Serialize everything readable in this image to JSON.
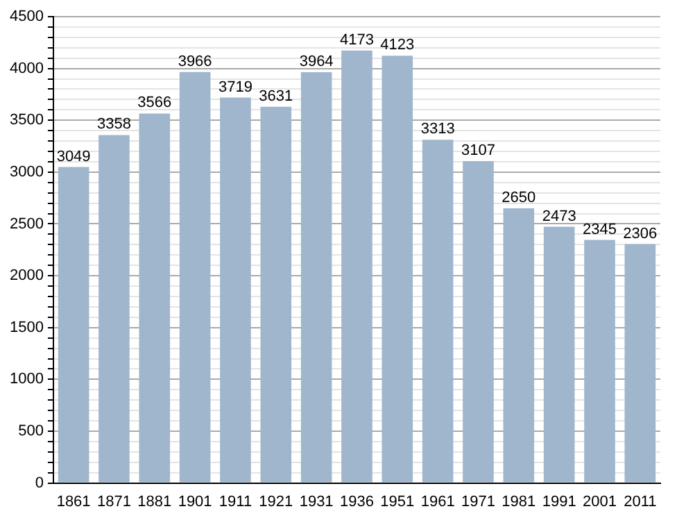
{
  "chart_data": {
    "type": "bar",
    "categories": [
      "1861",
      "1871",
      "1881",
      "1901",
      "1911",
      "1921",
      "1931",
      "1936",
      "1951",
      "1961",
      "1971",
      "1981",
      "1991",
      "2001",
      "2011"
    ],
    "values": [
      3049,
      3358,
      3566,
      3966,
      3719,
      3631,
      3964,
      4173,
      4123,
      3313,
      3107,
      2650,
      2473,
      2345,
      2306
    ],
    "color": "#9fb6cd",
    "ylim": [
      0,
      4500
    ],
    "yticks": [
      0,
      {
        "value": 100,
        "label": null
      },
      {
        "value": 200,
        "label": null
      },
      {
        "value": 300,
        "label": null
      },
      {
        "value": 400,
        "label": null
      },
      500,
      {
        "value": 600,
        "label": null
      },
      {
        "value": 700,
        "label": null
      },
      {
        "value": 800,
        "label": null
      },
      {
        "value": 900,
        "label": null
      },
      1000,
      {
        "value": 1100,
        "label": null
      },
      {
        "value": 1200,
        "label": null
      },
      {
        "value": 1300,
        "label": null
      },
      {
        "value": 1400,
        "label": null
      },
      1500,
      {
        "value": 1600,
        "label": null
      },
      {
        "value": 1700,
        "label": null
      },
      {
        "value": 1800,
        "label": null
      },
      {
        "value": 1900,
        "label": null
      },
      2000,
      {
        "value": 2100,
        "label": null
      },
      {
        "value": 2200,
        "label": null
      },
      {
        "value": 2300,
        "label": null
      },
      {
        "value": 2400,
        "label": null
      },
      2500,
      {
        "value": 2600,
        "label": null
      },
      {
        "value": 2700,
        "label": null
      },
      {
        "value": 2800,
        "label": null
      },
      {
        "value": 2900,
        "label": null
      },
      3000,
      {
        "value": 3100,
        "label": null
      },
      {
        "value": 3200,
        "label": null
      },
      {
        "value": 3300,
        "label": null
      },
      {
        "value": 3400,
        "label": null
      },
      3500,
      {
        "value": 3600,
        "label": null
      },
      {
        "value": 3700,
        "label": null
      },
      {
        "value": 3800,
        "label": null
      },
      {
        "value": 3900,
        "label": null
      },
      4000,
      {
        "value": 4100,
        "label": null
      },
      {
        "value": 4200,
        "label": null
      },
      {
        "value": 4300,
        "label": null
      },
      {
        "value": 4400,
        "label": null
      },
      4500
    ],
    "grid": "y",
    "data_labels": true
  }
}
